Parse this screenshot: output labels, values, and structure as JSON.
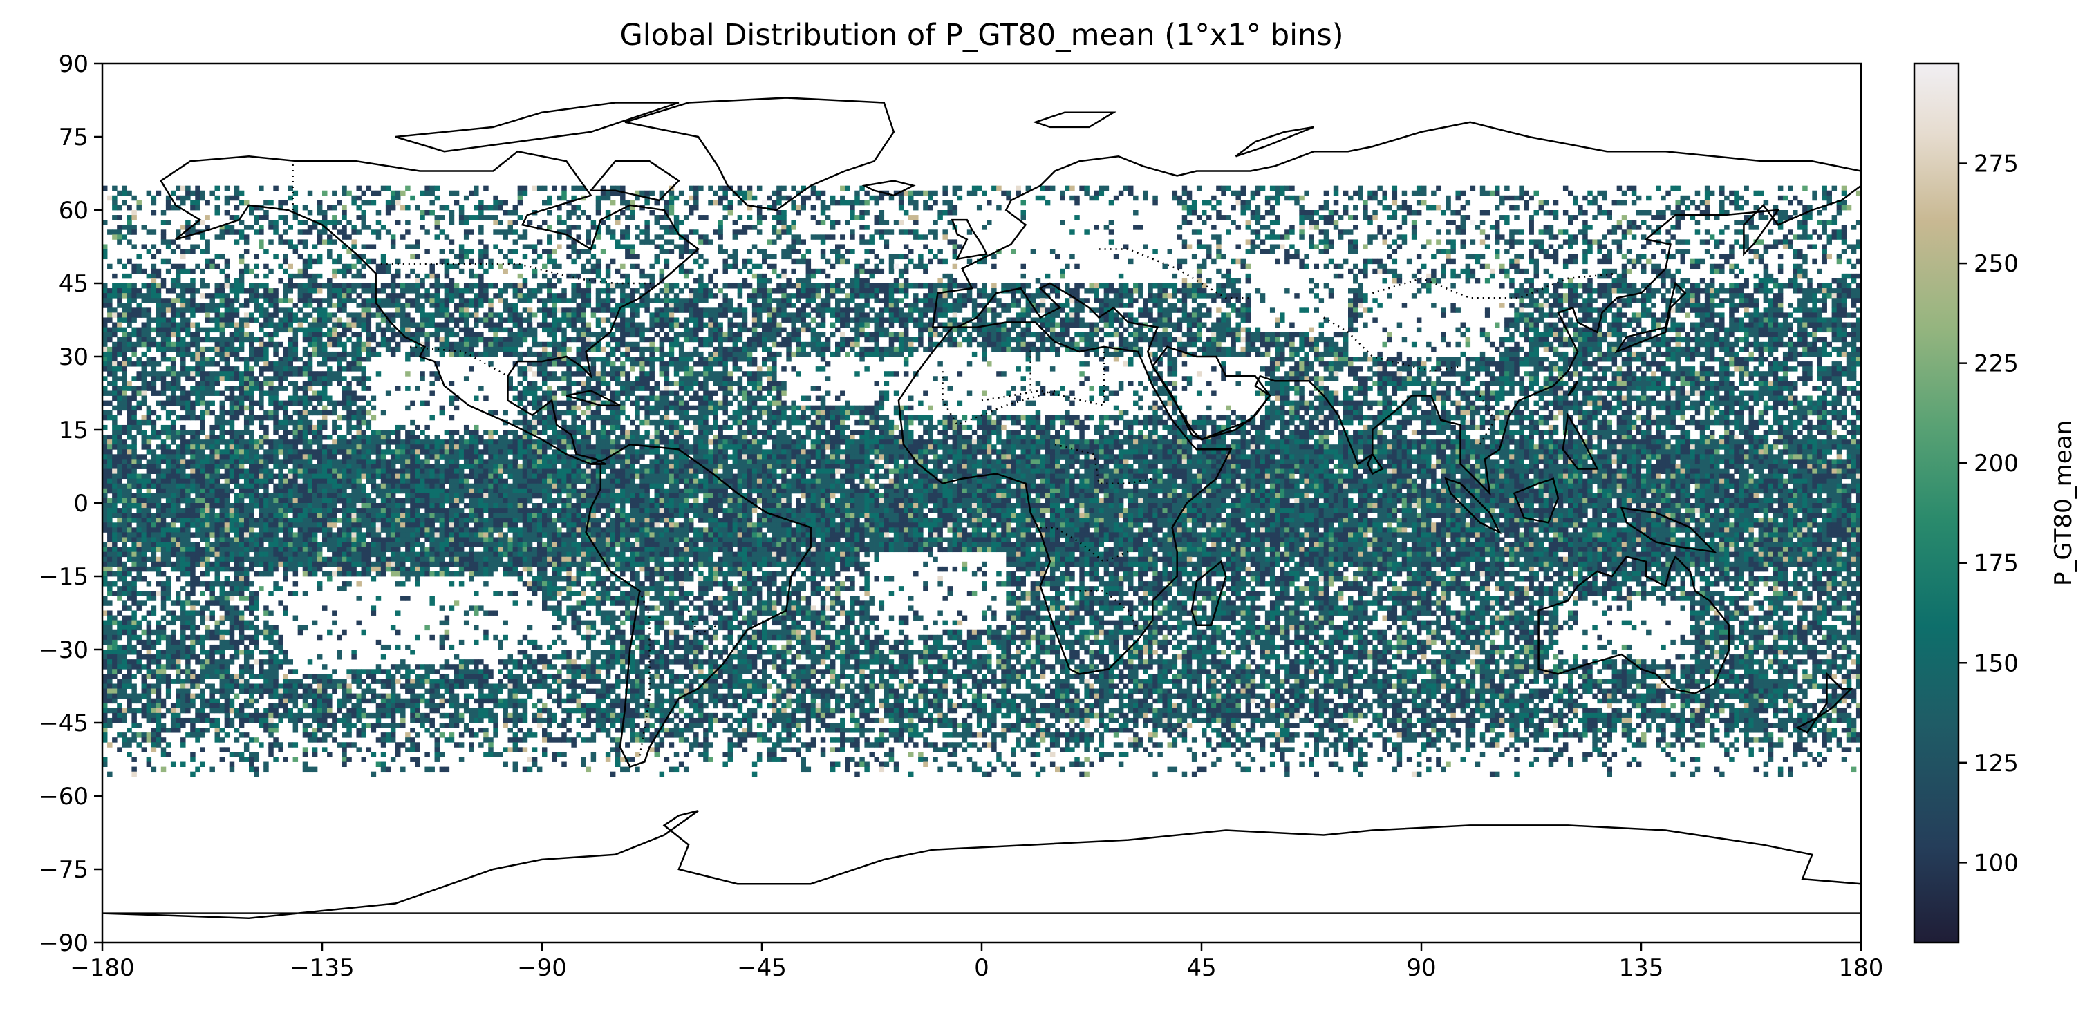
{
  "title": "Global Distribution of P_GT80_mean (1°x1° bins)",
  "map": {
    "projection": "PlateCarree",
    "extent": {
      "lon": [
        -180,
        180
      ],
      "lat": [
        -90,
        90
      ]
    },
    "bin_size_deg": 1,
    "features": [
      "coastlines",
      "country-borders-dotted"
    ],
    "x_ticks": [
      "−180",
      "−135",
      "−90",
      "−45",
      "0",
      "45",
      "90",
      "135",
      "180"
    ],
    "y_ticks": [
      "−90",
      "−75",
      "−60",
      "−45",
      "−30",
      "−15",
      "0",
      "15",
      "30",
      "45",
      "60",
      "75",
      "90"
    ],
    "x_tick_values": [
      -180,
      -135,
      -90,
      -45,
      0,
      45,
      90,
      135,
      180
    ],
    "y_tick_values": [
      -90,
      -75,
      -60,
      -45,
      -30,
      -15,
      0,
      15,
      30,
      45,
      60,
      75,
      90
    ]
  },
  "colorbar": {
    "label": "P_GT80_mean",
    "range": [
      80,
      300
    ],
    "ticks": [
      "100",
      "125",
      "150",
      "175",
      "200",
      "225",
      "250",
      "275"
    ],
    "tick_values": [
      100,
      125,
      150,
      175,
      200,
      225,
      250,
      275
    ],
    "colormap": "cmocean-rain",
    "colors": [
      "#1f1d36",
      "#253e5a",
      "#1f5c66",
      "#0e6f6b",
      "#2a8a6c",
      "#5aa274",
      "#95b57f",
      "#c8b892",
      "#e6dccf",
      "#f1eff3"
    ]
  },
  "chart_data": {
    "type": "heatmap",
    "title": "Global Distribution of P_GT80_mean (1°x1° bins)",
    "xlim": [
      -180,
      180
    ],
    "ylim": [
      -90,
      90
    ],
    "colorbar_label": "P_GT80_mean",
    "value_range": [
      80,
      300
    ],
    "data_coverage_lat": [
      -55,
      65
    ],
    "description_bands": [
      {
        "lat": [
          -15,
          15
        ],
        "typical_value": 140
      },
      {
        "lat": [
          -45,
          -15
        ],
        "typical_value": 135
      },
      {
        "lat": [
          15,
          45
        ],
        "typical_value": 135
      },
      {
        "lat": [
          45,
          65
        ],
        "typical_value": 130
      }
    ]
  }
}
